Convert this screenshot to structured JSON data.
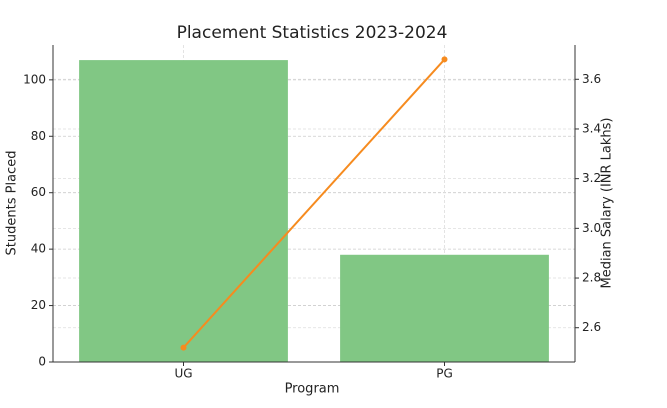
{
  "chart_data": {
    "type": "bar_line",
    "title": "Placement Statistics 2023-2024",
    "x_label": "Program",
    "y_label": "Students Placed",
    "y2_label": "Median Salary (INR Lakhs)",
    "categories": [
      "UG",
      "PG"
    ],
    "series": [
      {
        "name": "Students Placed",
        "type": "bar",
        "color": "#81c784",
        "values": [
          107,
          38
        ]
      },
      {
        "name": "Median Salary (INR Lakhs)",
        "type": "line",
        "axis": "y2",
        "color": "#f68b1f",
        "values": [
          2.52,
          3.68
        ]
      }
    ],
    "ylim": [
      0,
      112.35
    ],
    "yticks": [
      0,
      20,
      40,
      60,
      80,
      100
    ],
    "y2lim": [
      2.462,
      3.738
    ],
    "y2ticks": [
      {
        "value": 2.6,
        "label": "2.6"
      },
      {
        "value": 2.8,
        "label": "2.8"
      },
      {
        "value": 3.0,
        "label": "3.0"
      },
      {
        "value": 3.2,
        "label": "3.2"
      },
      {
        "value": 3.4,
        "label": "3.4"
      },
      {
        "value": 3.6,
        "label": "3.6"
      }
    ],
    "y_color": "#3a9a3a",
    "y2_color": "#f68b1f",
    "grid": true
  }
}
